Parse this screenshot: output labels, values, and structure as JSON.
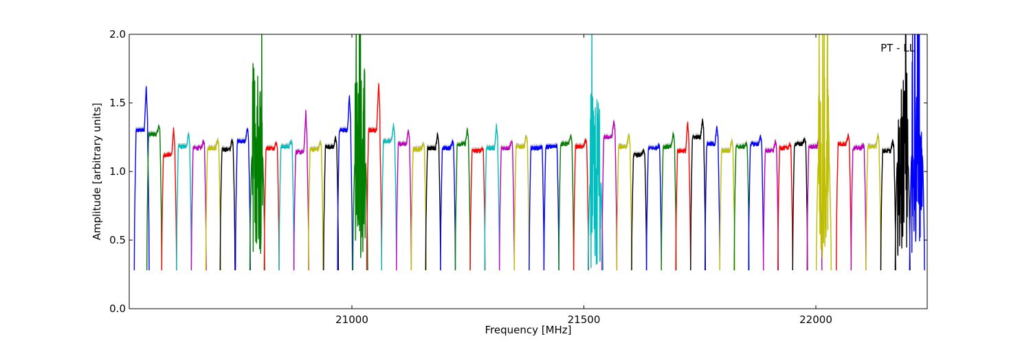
{
  "chart_data": {
    "type": "line",
    "xlabel": "Frequency [MHz]",
    "ylabel": "Amplitude [arbitrary units]",
    "annotation": "PT - LL",
    "annotation_position": "top-right",
    "xlim": [
      20520,
      22240
    ],
    "ylim": [
      0.0,
      2.0
    ],
    "xticks": [
      21000,
      21500,
      22000
    ],
    "xtick_labels": [
      "21000",
      "21500",
      "22000"
    ],
    "yticks": [
      0.0,
      0.5,
      1.0,
      1.5,
      2.0
    ],
    "ytick_labels": [
      "0.0",
      "0.5",
      "1.0",
      "1.5",
      "2.0"
    ],
    "grid": false,
    "legend": "none",
    "colors": {
      "blue": "#0000ff",
      "green": "#007f00",
      "red": "#ff0000",
      "cyan": "#00bfbf",
      "magenta": "#bf00bf",
      "olive": "#bfbf00",
      "black": "#000000",
      "shadow": "#bfbfbf"
    },
    "color_cycle": [
      "blue",
      "green",
      "red",
      "cyan",
      "magenta",
      "olive",
      "black"
    ],
    "channel_width_mhz": 32,
    "channels": [
      {
        "center": 20547,
        "level": 1.3,
        "peak": 1.62,
        "color": "blue"
      },
      {
        "center": 20574,
        "level": 1.27,
        "peak": 1.33,
        "color": "green"
      },
      {
        "center": 20606,
        "level": 1.12,
        "peak": 1.31,
        "color": "red"
      },
      {
        "center": 20638,
        "level": 1.18,
        "peak": 1.28,
        "color": "cyan"
      },
      {
        "center": 20670,
        "level": 1.17,
        "peak": 1.22,
        "color": "magenta"
      },
      {
        "center": 20701,
        "level": 1.17,
        "peak": 1.23,
        "color": "olive"
      },
      {
        "center": 20732,
        "level": 1.16,
        "peak": 1.23,
        "color": "black"
      },
      {
        "center": 20765,
        "level": 1.22,
        "peak": 1.31,
        "color": "blue"
      },
      {
        "center": 20796,
        "level": 1.1,
        "peak": 2.0,
        "color": "green"
      },
      {
        "center": 20827,
        "level": 1.17,
        "peak": 1.21,
        "color": "red"
      },
      {
        "center": 20859,
        "level": 1.18,
        "peak": 1.22,
        "color": "cyan"
      },
      {
        "center": 20891,
        "level": 1.14,
        "peak": 1.43,
        "color": "magenta"
      },
      {
        "center": 20922,
        "level": 1.16,
        "peak": 1.21,
        "color": "olive"
      },
      {
        "center": 20955,
        "level": 1.18,
        "peak": 1.24,
        "color": "black"
      },
      {
        "center": 20985,
        "level": 1.3,
        "peak": 1.55,
        "color": "blue"
      },
      {
        "center": 21018,
        "level": 1.05,
        "peak": 2.0,
        "color": "green"
      },
      {
        "center": 21048,
        "level": 1.3,
        "peak": 1.65,
        "color": "red"
      },
      {
        "center": 21080,
        "level": 1.22,
        "peak": 1.34,
        "color": "cyan"
      },
      {
        "center": 21112,
        "level": 1.2,
        "peak": 1.3,
        "color": "magenta"
      },
      {
        "center": 21144,
        "level": 1.16,
        "peak": 1.2,
        "color": "olive"
      },
      {
        "center": 21175,
        "level": 1.17,
        "peak": 1.28,
        "color": "black"
      },
      {
        "center": 21207,
        "level": 1.17,
        "peak": 1.22,
        "color": "blue"
      },
      {
        "center": 21239,
        "level": 1.2,
        "peak": 1.3,
        "color": "green"
      },
      {
        "center": 21271,
        "level": 1.15,
        "peak": 1.17,
        "color": "red"
      },
      {
        "center": 21302,
        "level": 1.17,
        "peak": 1.33,
        "color": "cyan"
      },
      {
        "center": 21334,
        "level": 1.17,
        "peak": 1.22,
        "color": "magenta"
      },
      {
        "center": 21366,
        "level": 1.18,
        "peak": 1.26,
        "color": "olive"
      },
      {
        "center": 21398,
        "level": 1.17,
        "peak": 1.18,
        "color": "blue"
      },
      {
        "center": 21430,
        "level": 1.18,
        "peak": 1.19,
        "color": "blue"
      },
      {
        "center": 21462,
        "level": 1.2,
        "peak": 1.26,
        "color": "green"
      },
      {
        "center": 21494,
        "level": 1.18,
        "peak": 1.23,
        "color": "red"
      },
      {
        "center": 21525,
        "level": 0.9,
        "peak": 2.0,
        "color": "cyan"
      },
      {
        "center": 21555,
        "level": 1.25,
        "peak": 1.37,
        "color": "magenta"
      },
      {
        "center": 21587,
        "level": 1.18,
        "peak": 1.27,
        "color": "olive"
      },
      {
        "center": 21619,
        "level": 1.12,
        "peak": 1.15,
        "color": "black"
      },
      {
        "center": 21651,
        "level": 1.17,
        "peak": 1.19,
        "color": "blue"
      },
      {
        "center": 21683,
        "level": 1.18,
        "peak": 1.28,
        "color": "green"
      },
      {
        "center": 21714,
        "level": 1.15,
        "peak": 1.36,
        "color": "red"
      },
      {
        "center": 21746,
        "level": 1.25,
        "peak": 1.38,
        "color": "black"
      },
      {
        "center": 21777,
        "level": 1.2,
        "peak": 1.32,
        "color": "blue"
      },
      {
        "center": 21809,
        "level": 1.15,
        "peak": 1.23,
        "color": "olive"
      },
      {
        "center": 21840,
        "level": 1.18,
        "peak": 1.2,
        "color": "green"
      },
      {
        "center": 21871,
        "level": 1.2,
        "peak": 1.25,
        "color": "blue"
      },
      {
        "center": 21903,
        "level": 1.15,
        "peak": 1.22,
        "color": "magenta"
      },
      {
        "center": 21934,
        "level": 1.17,
        "peak": 1.2,
        "color": "red"
      },
      {
        "center": 21966,
        "level": 1.2,
        "peak": 1.24,
        "color": "black"
      },
      {
        "center": 21997,
        "level": 1.18,
        "peak": 1.24,
        "color": "magenta"
      },
      {
        "center": 22017,
        "level": 1.05,
        "peak": 2.0,
        "color": "olive"
      },
      {
        "center": 22060,
        "level": 1.2,
        "peak": 1.26,
        "color": "red"
      },
      {
        "center": 22092,
        "level": 1.17,
        "peak": 1.19,
        "color": "magenta"
      },
      {
        "center": 22124,
        "level": 1.18,
        "peak": 1.26,
        "color": "olive"
      },
      {
        "center": 22156,
        "level": 1.15,
        "peak": 1.22,
        "color": "black"
      },
      {
        "center": 22187,
        "level": 1.05,
        "peak": 2.0,
        "color": "black"
      },
      {
        "center": 22218,
        "level": 1.1,
        "peak": 2.0,
        "color": "blue"
      }
    ]
  }
}
